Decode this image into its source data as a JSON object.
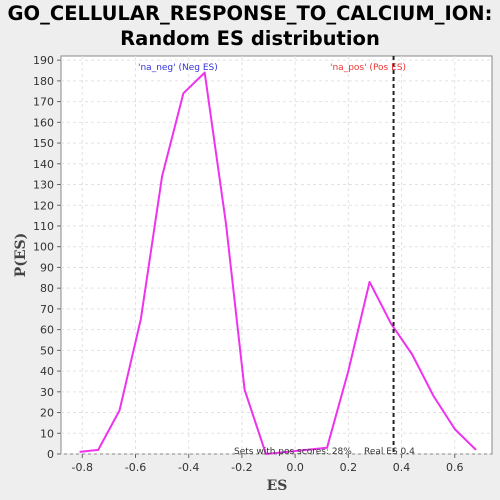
{
  "chart_data": {
    "type": "line",
    "title": "GO_CELLULAR_RESPONSE_TO_CALCIUM_ION:",
    "subtitle": "Random ES distribution",
    "xlabel": "ES",
    "ylabel": "P(ES)",
    "xlim": [
      -0.88,
      0.74
    ],
    "ylim": [
      0,
      192
    ],
    "xticks": [
      -0.8,
      -0.6,
      -0.4,
      -0.2,
      0.0,
      0.2,
      0.4,
      0.6
    ],
    "xtick_labels": [
      "-0.8",
      "-0.6",
      "-0.4",
      "-0.2",
      "0.0",
      "0.2",
      "0.4",
      "0.6"
    ],
    "yticks": [
      0,
      10,
      20,
      30,
      40,
      50,
      60,
      70,
      80,
      90,
      100,
      110,
      120,
      130,
      140,
      150,
      160,
      170,
      180,
      190
    ],
    "grid": true,
    "series": [
      {
        "color": "#ee33ee",
        "x": [
          -0.81,
          -0.74,
          -0.66,
          -0.58,
          -0.5,
          -0.42,
          -0.34,
          -0.26,
          -0.19,
          -0.11,
          0.12,
          0.2,
          0.28,
          0.36,
          0.44,
          0.52,
          0.6,
          0.68
        ],
        "y": [
          1,
          2,
          21,
          65,
          134,
          174,
          184,
          111,
          31,
          0,
          3,
          40,
          83,
          63,
          48,
          28,
          12,
          2
        ]
      }
    ],
    "real_es": 0.37,
    "legend_neg": "'na_neg' (Neg ES)",
    "legend_pos": "'na_pos' (Pos ES)",
    "legend_neg_color": "#3333dd",
    "legend_pos_color": "#ee3333",
    "annotation": "Sets with pos scores: 28%",
    "real_es_text": "Real ES 0.4"
  }
}
